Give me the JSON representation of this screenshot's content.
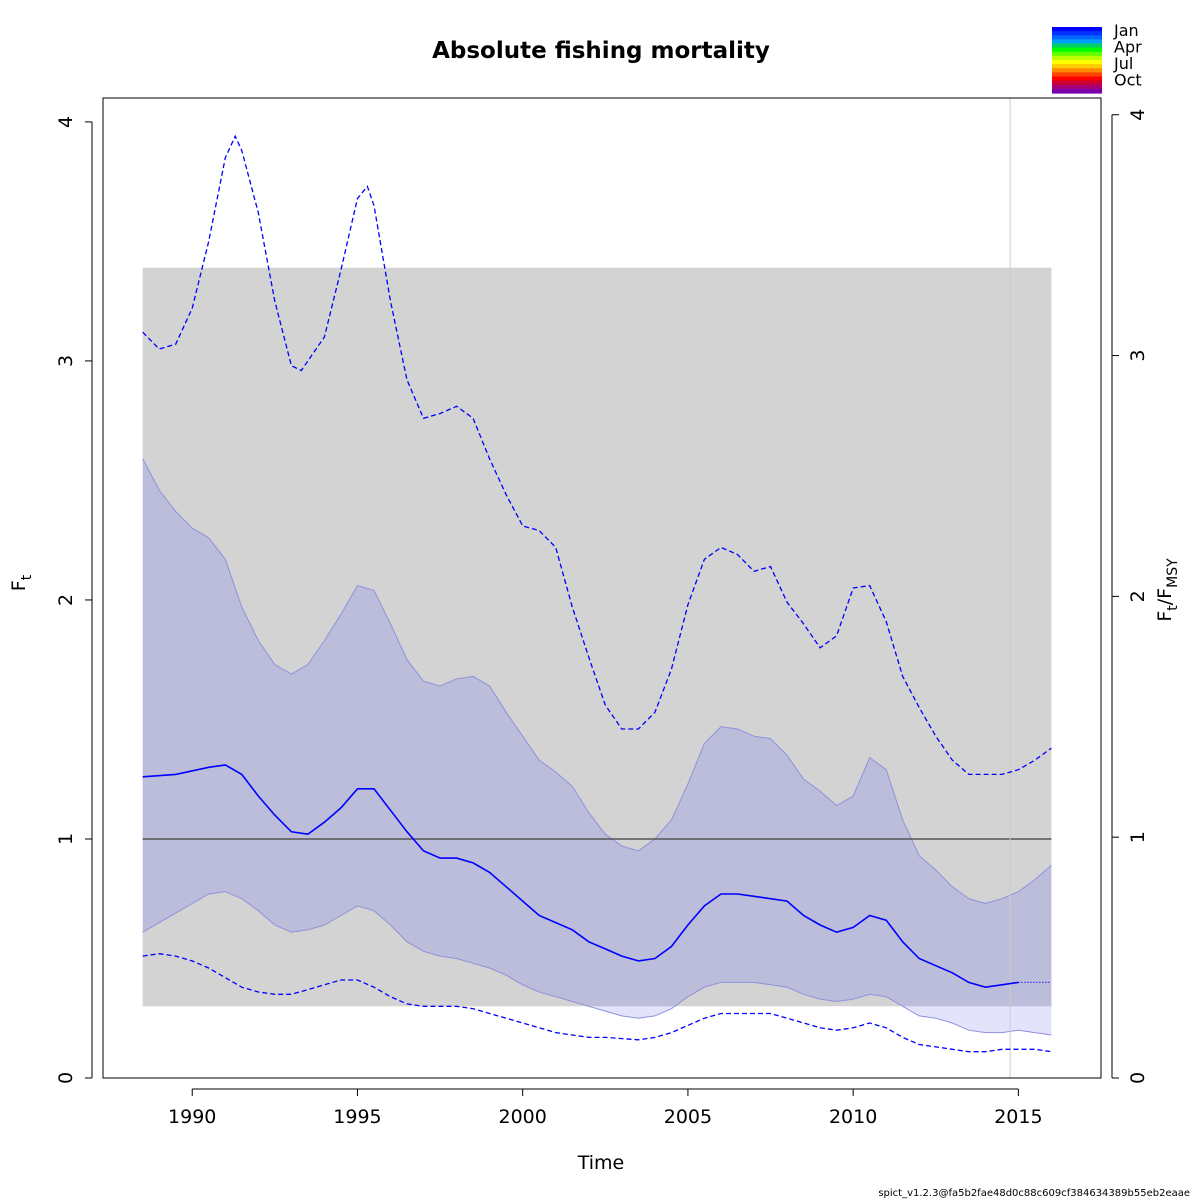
{
  "chart_data": {
    "type": "line",
    "title": "Absolute fishing mortality",
    "xlabel": "Time",
    "ylabel_left": {
      "main": "F",
      "sub": "t"
    },
    "ylabel_right": {
      "main1": "F",
      "sub1": "t",
      "sep": "/",
      "main2": "F",
      "sub2": "MSY"
    },
    "xlim": [
      1987.3,
      2017.5
    ],
    "ylim": [
      0,
      4.1
    ],
    "x_ticks": [
      1990,
      1995,
      2000,
      2005,
      2010,
      2015
    ],
    "x_tick_labels": [
      "1990",
      "1995",
      "2000",
      "2005",
      "2010",
      "2015"
    ],
    "y_ticks_left": [
      0,
      1,
      2,
      3,
      4
    ],
    "y_tick_labels_left": [
      "0",
      "1",
      "2",
      "3",
      "4"
    ],
    "y_ticks_right": [
      0,
      1,
      2,
      3,
      4
    ],
    "y_tick_labels_right": [
      "0",
      "1",
      "2",
      "3",
      "4"
    ],
    "fmsy": 1.0,
    "fmsy_ci_band": {
      "x": [
        1988.5,
        2016.0
      ],
      "lower": 0.3,
      "upper": 3.39
    },
    "last_obs_x": 2014.75,
    "estimate": {
      "x": [
        1988.5,
        1989.5,
        1990.5,
        1991.0,
        1991.5,
        1992.0,
        1992.5,
        1993.0,
        1993.5,
        1994.0,
        1994.5,
        1995.0,
        1995.5,
        1996.0,
        1996.5,
        1997.0,
        1997.5,
        1998.0,
        1998.5,
        1999.0,
        1999.5,
        2000.0,
        2000.5,
        2001.0,
        2001.5,
        2002.0,
        2002.5,
        2003.0,
        2003.5,
        2004.0,
        2004.5,
        2005.0,
        2005.5,
        2006.0,
        2006.5,
        2007.0,
        2007.5,
        2008.0,
        2008.5,
        2009.0,
        2009.5,
        2010.0,
        2010.5,
        2011.0,
        2011.5,
        2012.0,
        2012.5,
        2013.0,
        2013.5,
        2014.0,
        2014.5,
        2015.0
      ],
      "y": [
        1.26,
        1.27,
        1.3,
        1.31,
        1.27,
        1.18,
        1.1,
        1.03,
        1.02,
        1.07,
        1.13,
        1.21,
        1.21,
        1.12,
        1.03,
        0.95,
        0.92,
        0.92,
        0.9,
        0.86,
        0.8,
        0.74,
        0.68,
        0.65,
        0.62,
        0.57,
        0.54,
        0.51,
        0.49,
        0.5,
        0.55,
        0.64,
        0.72,
        0.77,
        0.77,
        0.76,
        0.75,
        0.74,
        0.68,
        0.64,
        0.61,
        0.63,
        0.68,
        0.66,
        0.57,
        0.5,
        0.47,
        0.44,
        0.4,
        0.38,
        0.39,
        0.4
      ]
    },
    "forecast": {
      "x": [
        2015.0,
        2016.0
      ],
      "y": [
        0.4,
        0.4
      ]
    },
    "ci_band": {
      "x": [
        1988.5,
        1989.0,
        1989.5,
        1990.0,
        1990.5,
        1991.0,
        1991.5,
        1992.0,
        1992.5,
        1993.0,
        1993.5,
        1994.0,
        1994.5,
        1995.0,
        1995.5,
        1996.0,
        1996.5,
        1997.0,
        1997.5,
        1998.0,
        1998.5,
        1999.0,
        1999.5,
        2000.0,
        2000.5,
        2001.0,
        2001.5,
        2002.0,
        2002.5,
        2003.0,
        2003.5,
        2004.0,
        2004.5,
        2005.0,
        2005.5,
        2006.0,
        2006.5,
        2007.0,
        2007.5,
        2008.0,
        2008.5,
        2009.0,
        2009.5,
        2010.0,
        2010.5,
        2011.0,
        2011.5,
        2012.0,
        2012.5,
        2013.0,
        2013.5,
        2014.0,
        2014.5,
        2015.0,
        2015.5,
        2016.0
      ],
      "upper": [
        2.59,
        2.46,
        2.37,
        2.3,
        2.26,
        2.17,
        1.97,
        1.83,
        1.73,
        1.69,
        1.73,
        1.83,
        1.94,
        2.06,
        2.04,
        1.9,
        1.75,
        1.66,
        1.64,
        1.67,
        1.68,
        1.64,
        1.53,
        1.43,
        1.33,
        1.28,
        1.22,
        1.11,
        1.02,
        0.97,
        0.95,
        1.0,
        1.08,
        1.23,
        1.4,
        1.47,
        1.46,
        1.43,
        1.42,
        1.35,
        1.25,
        1.2,
        1.14,
        1.18,
        1.34,
        1.29,
        1.08,
        0.93,
        0.87,
        0.8,
        0.75,
        0.73,
        0.75,
        0.78,
        0.83,
        0.89
      ]
    },
    "ci_lower_est": {
      "x": [
        1988.5,
        1989.0,
        1989.5,
        1990.0,
        1990.5,
        1991.0,
        1991.5,
        1992.0,
        1992.5,
        1993.0,
        1993.5,
        1994.0,
        1994.5,
        1995.0,
        1995.5,
        1996.0,
        1996.5,
        1997.0,
        1997.5,
        1998.0,
        1998.5,
        1999.0,
        1999.5,
        2000.0,
        2000.5,
        2001.0,
        2001.5,
        2002.0,
        2002.5,
        2003.0,
        2003.5,
        2004.0,
        2004.5,
        2005.0,
        2005.5,
        2006.0,
        2006.5,
        2007.0,
        2007.5,
        2008.0,
        2008.5,
        2009.0,
        2009.5,
        2010.0,
        2010.5,
        2011.0,
        2011.5,
        2012.0,
        2012.5,
        2013.0,
        2013.5,
        2014.0,
        2014.5,
        2015.0
      ],
      "y": [
        0.61,
        0.65,
        0.69,
        0.73,
        0.77,
        0.78,
        0.75,
        0.7,
        0.64,
        0.61,
        0.62,
        0.64,
        0.68,
        0.72,
        0.7,
        0.64,
        0.57,
        0.53,
        0.51,
        0.5,
        0.48,
        0.46,
        0.43,
        0.39,
        0.36,
        0.34,
        0.32,
        0.3,
        0.28,
        0.26,
        0.25,
        0.26,
        0.29,
        0.34,
        0.38,
        0.4,
        0.4,
        0.4,
        0.39,
        0.38,
        0.35,
        0.33,
        0.32,
        0.33,
        0.35,
        0.34,
        0.3,
        0.26,
        0.25,
        0.23,
        0.2,
        0.19,
        0.19,
        0.2
      ]
    },
    "ci_lower_fc": {
      "x": [
        2015.0,
        2015.5,
        2016.0
      ],
      "y": [
        0.2,
        0.19,
        0.18
      ]
    },
    "F_ci_upper": {
      "x": [
        1988.5,
        1989.0,
        1989.5,
        1990.0,
        1990.5,
        1991.0,
        1991.3,
        1991.5,
        1992.0,
        1992.5,
        1993.0,
        1993.3,
        1993.5,
        1994.0,
        1994.5,
        1995.0,
        1995.3,
        1995.5,
        1996.0,
        1996.5,
        1997.0,
        1997.5,
        1998.0,
        1998.5,
        1999.0,
        1999.5,
        2000.0,
        2000.5,
        2001.0,
        2001.5,
        2002.0,
        2002.5,
        2003.0,
        2003.5,
        2004.0,
        2004.5,
        2005.0,
        2005.5,
        2006.0,
        2006.5,
        2007.0,
        2007.5,
        2008.0,
        2008.5,
        2009.0,
        2009.5,
        2010.0,
        2010.5,
        2011.0,
        2011.5,
        2012.0,
        2012.5,
        2013.0,
        2013.5,
        2014.0,
        2014.5,
        2015.0,
        2015.5,
        2016.0
      ],
      "y": [
        3.12,
        3.05,
        3.07,
        3.22,
        3.5,
        3.85,
        3.94,
        3.88,
        3.62,
        3.25,
        2.98,
        2.96,
        3.0,
        3.1,
        3.38,
        3.68,
        3.73,
        3.65,
        3.25,
        2.92,
        2.76,
        2.78,
        2.81,
        2.76,
        2.59,
        2.44,
        2.31,
        2.29,
        2.22,
        1.97,
        1.76,
        1.56,
        1.46,
        1.46,
        1.53,
        1.71,
        1.98,
        2.17,
        2.22,
        2.19,
        2.12,
        2.14,
        1.99,
        1.9,
        1.8,
        1.85,
        2.05,
        2.06,
        1.91,
        1.68,
        1.55,
        1.43,
        1.33,
        1.27,
        1.27,
        1.27,
        1.29,
        1.33,
        1.38
      ]
    },
    "F_ci_lower": {
      "x": [
        1988.5,
        1989.0,
        1989.5,
        1990.0,
        1990.5,
        1991.0,
        1991.5,
        1992.0,
        1992.5,
        1993.0,
        1993.5,
        1994.0,
        1994.5,
        1995.0,
        1995.5,
        1996.0,
        1996.5,
        1997.0,
        1997.5,
        1998.0,
        1998.5,
        1999.0,
        1999.5,
        2000.0,
        2000.5,
        2001.0,
        2001.5,
        2002.0,
        2002.5,
        2003.0,
        2003.5,
        2004.0,
        2004.5,
        2005.0,
        2005.5,
        2006.0,
        2006.5,
        2007.0,
        2007.5,
        2008.0,
        2008.5,
        2009.0,
        2009.5,
        2010.0,
        2010.5,
        2011.0,
        2011.5,
        2012.0,
        2012.5,
        2013.0,
        2013.5,
        2014.0,
        2014.5,
        2015.0,
        2015.5,
        2016.0
      ],
      "y": [
        0.51,
        0.52,
        0.51,
        0.49,
        0.46,
        0.42,
        0.38,
        0.36,
        0.35,
        0.35,
        0.37,
        0.39,
        0.41,
        0.41,
        0.38,
        0.34,
        0.31,
        0.3,
        0.3,
        0.3,
        0.29,
        0.27,
        0.25,
        0.23,
        0.21,
        0.19,
        0.18,
        0.17,
        0.17,
        0.165,
        0.16,
        0.17,
        0.19,
        0.22,
        0.25,
        0.27,
        0.27,
        0.27,
        0.27,
        0.25,
        0.23,
        0.21,
        0.2,
        0.21,
        0.23,
        0.21,
        0.17,
        0.14,
        0.13,
        0.12,
        0.11,
        0.11,
        0.12,
        0.12,
        0.12,
        0.11
      ]
    },
    "legend": {
      "placement": "top-right",
      "labels": [
        "Jan",
        "Apr",
        "Jul",
        "Oct"
      ],
      "colors": [
        "#0000ff",
        "#0033ff",
        "#0066ff",
        "#00a0ff",
        "#00d060",
        "#00ff00",
        "#66ff00",
        "#bbff00",
        "#ffff00",
        "#ffcc00",
        "#ff8800",
        "#ff4400",
        "#ff0000",
        "#cc0033",
        "#aa0077",
        "#7700aa"
      ]
    },
    "colors": {
      "estimate": "#0000ff",
      "ci_band": "#bcbdda",
      "ci_band_forecast": "#e0e0fc",
      "ci_edge": "#8f91dd",
      "fmsy_band": "#d3d3d3",
      "fmsy_line": "#555555",
      "last_obs_line": "#cccccc"
    }
  },
  "footer": "spict_v1.2.3@fa5b2fae48d0c88c609cf384634389b55eb2eaae"
}
